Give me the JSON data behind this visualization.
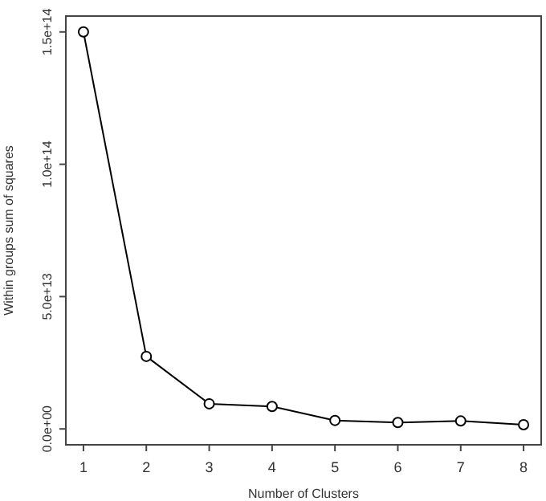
{
  "chart_data": {
    "type": "line",
    "xlabel": "Number of Clusters",
    "ylabel": "Within groups sum of squares",
    "x": [
      1,
      2,
      3,
      4,
      5,
      6,
      7,
      8
    ],
    "series": [
      {
        "color": "#000000",
        "values": [
          150000000000000,
          27400000000000,
          9500000000000,
          8500000000000,
          3200000000000,
          2400000000000,
          3000000000000,
          1600000000000
        ]
      }
    ],
    "xlim": [
      0.72,
      8.28
    ],
    "xticks": [
      1,
      2,
      3,
      4,
      5,
      6,
      7,
      8
    ],
    "ylim": [
      -6000000000000,
      156000000000000
    ],
    "yticks": [
      {
        "value": 0,
        "label": "0.0e+00"
      },
      {
        "value": 50000000000000,
        "label": "5.0e+13"
      },
      {
        "value": 100000000000000,
        "label": "1.0e+14"
      },
      {
        "value": 150000000000000,
        "label": "1.5e+14"
      }
    ],
    "marker": "circle",
    "line_style": "solid",
    "grid": false
  }
}
